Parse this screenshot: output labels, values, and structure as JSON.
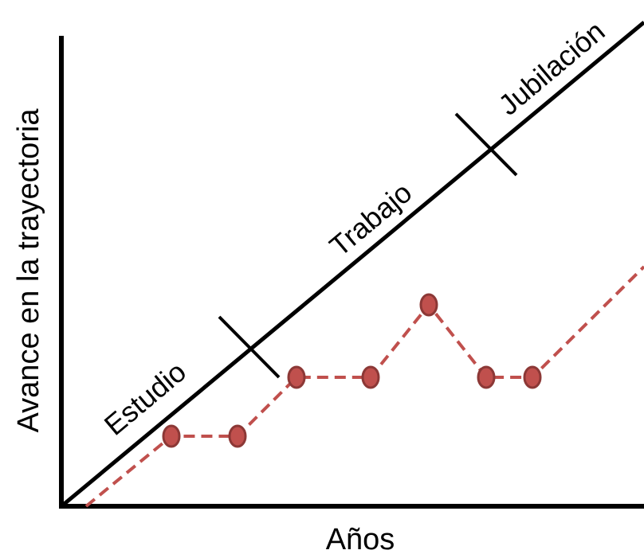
{
  "axes": {
    "x_label": "Años",
    "y_label": "Avance en la trayectoria"
  },
  "phases": [
    {
      "id": "estudio",
      "label": "Estudio"
    },
    {
      "id": "trabajo",
      "label": "Trabajo"
    },
    {
      "id": "jubilacion",
      "label": "Jubilación"
    }
  ],
  "colors": {
    "axis": "#000000",
    "ideal_line": "#000000",
    "actual_line": "#c0504d",
    "marker_fill": "#c0504d",
    "marker_stroke": "#8c3836"
  }
}
